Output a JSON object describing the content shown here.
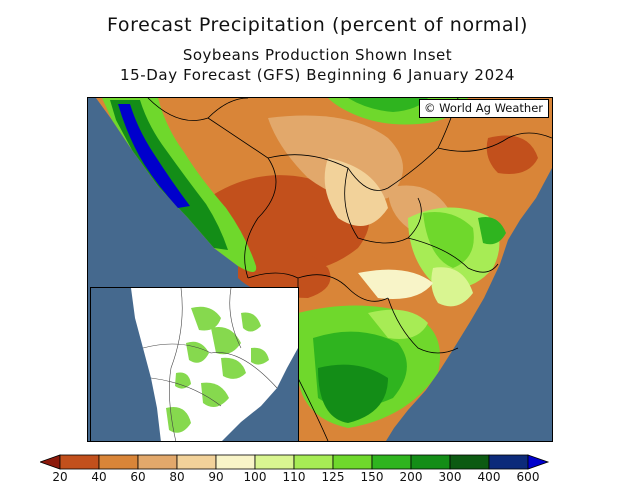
{
  "title": {
    "line1": "Forecast Precipitation (percent of normal)",
    "line2": "Soybeans Production Shown Inset",
    "line3": "15-Day Forecast (GFS) Beginning 6 January 2024"
  },
  "credit": "© World Ag Weather",
  "legend": {
    "colors": [
      "#8c1a0c",
      "#c2501c",
      "#d98538",
      "#e2a86b",
      "#f2d29a",
      "#f8f4c8",
      "#d9f591",
      "#a7ec55",
      "#6fd82c",
      "#2fb41f",
      "#138d17",
      "#0c5a12",
      "#0c2a7a",
      "#0000cc"
    ],
    "labels": [
      "20",
      "40",
      "60",
      "80",
      "90",
      "100",
      "110",
      "125",
      "150",
      "200",
      "300",
      "400",
      "600"
    ]
  },
  "colors": {
    "ocean": "#45698e",
    "inset_crop": "#86d94e"
  }
}
